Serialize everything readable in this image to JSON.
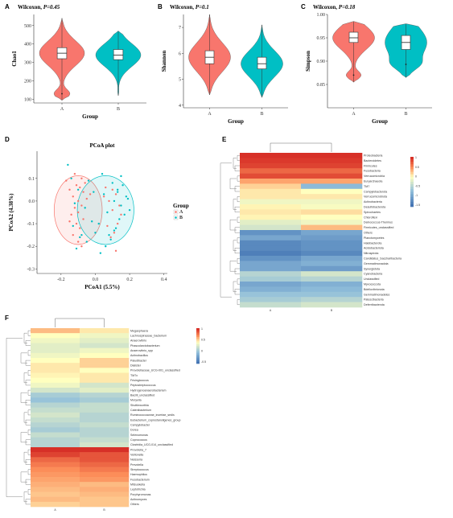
{
  "colors": {
    "groupA": "#F8766D",
    "groupB": "#00BFC4",
    "heat_hi": "#d73027",
    "heat_mid": "#ffffbf",
    "heat_lo": "#4575b4"
  },
  "panels": {
    "A": {
      "label": "A",
      "title_prefix": "Wilcoxon, ",
      "title_p": "P=0.45"
    },
    "B": {
      "label": "B",
      "title_prefix": "Wilcoxon, ",
      "title_p": "P=0.1"
    },
    "C": {
      "label": "C",
      "title_prefix": "Wilcoxon, ",
      "title_p": "P=0.18"
    },
    "D": {
      "label": "D"
    },
    "E": {
      "label": "E"
    },
    "F": {
      "label": "F"
    }
  },
  "chart_data": [
    {
      "panel": "A",
      "type": "violin",
      "ylabel": "Chao1",
      "xlabel": "Group",
      "categories": [
        "A",
        "B"
      ],
      "ylim": [
        80,
        560
      ],
      "yticks": [
        100,
        200,
        300,
        400,
        500
      ],
      "groups": [
        {
          "name": "A",
          "min": 95,
          "q1": 320,
          "median": 350,
          "q3": 380,
          "max": 540,
          "outliers": [
            130
          ]
        },
        {
          "name": "B",
          "min": 120,
          "q1": 315,
          "median": 340,
          "q3": 370,
          "max": 470,
          "outliers": []
        }
      ]
    },
    {
      "panel": "B",
      "type": "violin",
      "ylabel": "Shannon",
      "xlabel": "Group",
      "categories": [
        "A",
        "B"
      ],
      "ylim": [
        3.9,
        7.5
      ],
      "yticks": [
        4,
        5,
        6,
        7
      ],
      "groups": [
        {
          "name": "A",
          "min": 4.4,
          "q1": 5.6,
          "median": 5.85,
          "q3": 6.1,
          "max": 7.5,
          "outliers": []
        },
        {
          "name": "B",
          "min": 4.3,
          "q1": 5.4,
          "median": 5.6,
          "q3": 5.85,
          "max": 7.1,
          "outliers": []
        }
      ]
    },
    {
      "panel": "C",
      "type": "violin",
      "ylabel": "Simpson",
      "xlabel": "Group",
      "categories": [
        "A",
        "B"
      ],
      "ylim": [
        0.8,
        1.0
      ],
      "yticks": [
        0.85,
        0.9,
        0.95,
        1.0
      ],
      "ytick_labels": [
        "0.85",
        "0.90",
        "0.95",
        "1.00"
      ],
      "groups": [
        {
          "name": "A",
          "min": 0.855,
          "q1": 0.94,
          "median": 0.95,
          "q3": 0.962,
          "max": 0.985,
          "outliers": [
            0.87
          ]
        },
        {
          "name": "B",
          "min": 0.865,
          "q1": 0.925,
          "median": 0.94,
          "q3": 0.955,
          "max": 0.98,
          "outliers": [
            0.893
          ]
        }
      ]
    },
    {
      "panel": "D",
      "type": "scatter",
      "title": "PCoA plot",
      "xlabel": "PCoA1 (5.5%)",
      "ylabel": "PCoA2 (4.38%)",
      "xlim": [
        -0.34,
        0.42
      ],
      "ylim": [
        -0.32,
        0.22
      ],
      "xticks": [
        -0.2,
        0.0,
        0.2,
        0.4
      ],
      "xtick_labels": [
        "-0.2",
        "0.0",
        "0.2",
        "0.4"
      ],
      "yticks": [
        -0.3,
        -0.2,
        -0.1,
        0.0,
        0.1
      ],
      "ytick_labels": [
        "-0.3",
        "-0.2",
        "-0.1",
        "0.0",
        "0.1"
      ],
      "legend_title": "Group",
      "series": [
        {
          "name": "A",
          "x": [
            -0.17,
            -0.15,
            -0.13,
            -0.12,
            -0.11,
            -0.1,
            -0.09,
            -0.08,
            -0.07,
            -0.06,
            -0.12,
            -0.1,
            -0.08,
            -0.14,
            -0.05,
            -0.03,
            -0.15,
            -0.11,
            -0.09,
            -0.07,
            0.05,
            0.08,
            0.1,
            0.12,
            0.14,
            0.07,
            0.11,
            0.13,
            0.09,
            0.15,
            -0.13,
            -0.1,
            -0.08,
            0.06,
            0.1,
            0.12
          ],
          "y": [
            0.09,
            0.05,
            0.02,
            0.12,
            0.07,
            0.0,
            0.06,
            0.1,
            0.04,
            0.08,
            -0.03,
            -0.05,
            -0.02,
            -0.06,
            0.01,
            0.03,
            -0.09,
            -0.1,
            -0.12,
            -0.08,
            0.02,
            0.0,
            -0.04,
            0.03,
            -0.02,
            -0.11,
            -0.14,
            -0.1,
            -0.16,
            -0.06,
            -0.15,
            -0.18,
            -0.2,
            0.06,
            0.05,
            -0.22
          ]
        },
        {
          "name": "B",
          "x": [
            -0.16,
            -0.14,
            -0.12,
            -0.1,
            -0.06,
            -0.04,
            -0.01,
            0.02,
            0.04,
            0.07,
            0.1,
            0.11,
            0.13,
            0.15,
            0.16,
            0.18,
            0.2,
            0.14,
            0.12,
            0.09,
            0.06,
            0.03,
            0.0,
            -0.02,
            -0.05,
            -0.08,
            -0.11,
            0.15,
            0.17,
            0.19,
            0.11,
            0.08,
            0.13,
            -0.13,
            -0.09,
            0.05
          ],
          "y": [
            0.16,
            0.1,
            -0.01,
            0.05,
            -0.03,
            0.09,
            0.04,
            -0.1,
            0.12,
            -0.05,
            0.08,
            0.0,
            0.04,
            -0.02,
            0.07,
            0.02,
            -0.04,
            -0.08,
            -0.12,
            -0.17,
            -0.2,
            -0.23,
            -0.14,
            -0.09,
            -0.18,
            -0.15,
            -0.21,
            0.11,
            -0.06,
            0.01,
            -0.13,
            -0.15,
            0.05,
            -0.11,
            -0.16,
            0.03
          ]
        }
      ]
    },
    {
      "panel": "E",
      "type": "heatmap",
      "columns": [
        "A",
        "B"
      ],
      "colorbar_ticks": [
        "1",
        "0.5",
        "0",
        "-0.5",
        "-1",
        "-1.5"
      ],
      "rows": [
        "Proteobacteria",
        "Bacteroidetes",
        "Firmicutes",
        "Fusobacteria",
        "Verrucomicrobia",
        "Euryarchaeota",
        "TM7",
        "Campylobacterota",
        "Verrucomicrobiota",
        "Actinobacteria",
        "Desulfobacterota",
        "Spirochaetes",
        "Chloroflexi",
        "Deinococcus-Thermus",
        "Firmicutes_unclassified",
        "Others",
        "Planctomycetes",
        "Halobacterota",
        "Acidobacteriota",
        "Nitrospirota",
        "Candidatus_Saccharibacteria",
        "Gemmatimonadota",
        "Synergistota",
        "Cyanobacteria",
        "Unclassified",
        "Myxococcota",
        "Bdellovibrionota",
        "Gemmatimonadetes",
        "Patescibacteria",
        "Deferribacterota"
      ],
      "values": [
        [
          1.0,
          1.0
        ],
        [
          0.95,
          0.95
        ],
        [
          0.9,
          0.9
        ],
        [
          0.7,
          0.7
        ],
        [
          0.85,
          0.85
        ],
        [
          0.4,
          0.4
        ],
        [
          0.2,
          -0.8
        ],
        [
          0.1,
          0.0
        ],
        [
          0.1,
          0.1
        ],
        [
          -0.1,
          -0.1
        ],
        [
          0.05,
          -0.05
        ],
        [
          0.1,
          0.15
        ],
        [
          0.05,
          0.0
        ],
        [
          -0.2,
          -0.1
        ],
        [
          -0.3,
          0.3
        ],
        [
          -1.2,
          -1.0
        ],
        [
          -1.0,
          -1.1
        ],
        [
          -1.3,
          -1.2
        ],
        [
          -1.3,
          -1.2
        ],
        [
          -1.4,
          -1.3
        ],
        [
          -1.2,
          -1.0
        ],
        [
          -1.0,
          -0.9
        ],
        [
          -1.0,
          -1.1
        ],
        [
          -0.5,
          -0.3
        ],
        [
          -0.6,
          -0.5
        ],
        [
          -1.0,
          -0.9
        ],
        [
          -0.9,
          -0.8
        ],
        [
          -0.7,
          -0.7
        ],
        [
          -0.6,
          -0.5
        ],
        [
          -0.4,
          -0.3
        ]
      ]
    },
    {
      "panel": "F",
      "type": "heatmap",
      "columns": [
        "A",
        "B"
      ],
      "colorbar_ticks": [
        "1",
        "0.5",
        "0",
        "-0.5"
      ],
      "rows": [
        "Megasphaera",
        "Lachnospiraceae_bacterium",
        "Anaerovibrio",
        "Phascolarctobacterium",
        "Anaerovibrio_spp",
        "Actinobacillus",
        "Paludibacter",
        "Dialister",
        "Prevotellaceae_UCG-001_unclassified",
        "TM7x",
        "Frisingicoccus",
        "Peptostreptococcus",
        "Hydrogenoanaerobacterium",
        "Bacilli_unclassified",
        "Moryella",
        "Shuttleworthia",
        "Catenibacterium",
        "Ruminococcaceae_incertae_sedis",
        "Eubacterium_coprostanoligenes_group",
        "Campylobacter",
        "Dorea",
        "Selenomonas",
        "Coprococcus",
        "Clostridia_UCG-014_unclassified",
        "Prevotella_7",
        "Veillonella",
        "Neisseria",
        "Prevotella",
        "Streptococcus",
        "Haemophilus",
        "Fusobacterium",
        "Mitsuokella",
        "Leptotrichia",
        "Porphyromonas",
        "Actinomyces",
        "Others"
      ],
      "values": [
        [
          0.3,
          0.1
        ],
        [
          0.0,
          -0.1
        ],
        [
          -0.1,
          -0.2
        ],
        [
          -0.2,
          -0.3
        ],
        [
          -0.2,
          -0.1
        ],
        [
          -0.1,
          0.0
        ],
        [
          0.0,
          0.2
        ],
        [
          0.1,
          0.2
        ],
        [
          0.1,
          0.0
        ],
        [
          0.05,
          0.1
        ],
        [
          0.0,
          0.1
        ],
        [
          -0.1,
          -0.3
        ],
        [
          -0.3,
          -0.2
        ],
        [
          -0.6,
          -0.5
        ],
        [
          -0.7,
          -0.6
        ],
        [
          -0.5,
          -0.4
        ],
        [
          -0.4,
          -0.4
        ],
        [
          -0.3,
          -0.5
        ],
        [
          -0.4,
          -0.5
        ],
        [
          -0.5,
          -0.4
        ],
        [
          -0.6,
          -0.5
        ],
        [
          -0.4,
          -0.5
        ],
        [
          -0.5,
          -0.4
        ],
        [
          -0.5,
          -0.3
        ],
        [
          1.0,
          1.0
        ],
        [
          0.9,
          0.8
        ],
        [
          0.7,
          0.8
        ],
        [
          0.6,
          0.7
        ],
        [
          0.5,
          0.6
        ],
        [
          0.45,
          0.5
        ],
        [
          0.4,
          0.45
        ],
        [
          0.35,
          0.3
        ],
        [
          0.3,
          0.35
        ],
        [
          0.25,
          0.3
        ],
        [
          0.3,
          0.25
        ],
        [
          0.2,
          0.25
        ]
      ]
    }
  ]
}
